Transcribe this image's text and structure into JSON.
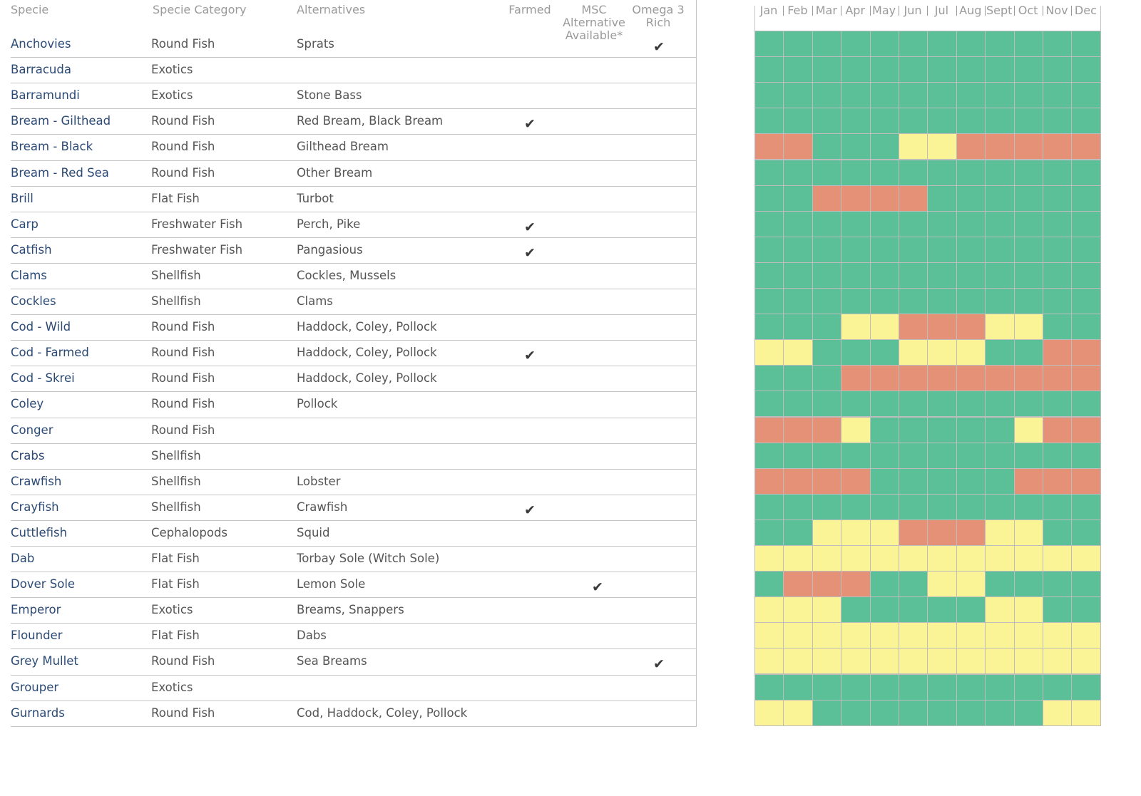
{
  "headers": {
    "species": "Specie",
    "category": "Specie Category",
    "alternatives": "Alternatives",
    "farmed": "Farmed",
    "msc": "MSC Alternative Available*",
    "omega": "Omega 3 Rich"
  },
  "months": [
    "Jan",
    "Feb",
    "Mar",
    "Apr",
    "May",
    "Jun",
    "Jul",
    "Aug",
    "Sept",
    "Oct",
    "Nov",
    "Dec"
  ],
  "check_symbol": "✔",
  "colors": {
    "G": "#5bbf97",
    "Y": "#fbf497",
    "R": "#e59178"
  },
  "rows": [
    {
      "name": "Anchovies",
      "category": "Round Fish",
      "alternatives": "Sprats",
      "farmed": false,
      "msc": false,
      "omega": true,
      "seasons": "GGGGGGGGGGGG"
    },
    {
      "name": "Barracuda",
      "category": "Exotics",
      "alternatives": "",
      "farmed": false,
      "msc": false,
      "omega": false,
      "seasons": "GGGGGGGGGGGG"
    },
    {
      "name": "Barramundi",
      "category": "Exotics",
      "alternatives": "Stone Bass",
      "farmed": false,
      "msc": false,
      "omega": false,
      "seasons": "GGGGGGGGGGGG"
    },
    {
      "name": "Bream - Gilthead",
      "category": "Round Fish",
      "alternatives": "Red Bream, Black Bream",
      "farmed": true,
      "msc": false,
      "omega": false,
      "seasons": "GGGGGGGGGGGG"
    },
    {
      "name": "Bream - Black",
      "category": "Round Fish",
      "alternatives": "Gilthead Bream",
      "farmed": false,
      "msc": false,
      "omega": false,
      "seasons": "RRGGGYYRRRRR"
    },
    {
      "name": "Bream - Red Sea",
      "category": "Round Fish",
      "alternatives": "Other Bream",
      "farmed": false,
      "msc": false,
      "omega": false,
      "seasons": "GGGGGGGGGGGG"
    },
    {
      "name": "Brill",
      "category": "Flat Fish",
      "alternatives": "Turbot",
      "farmed": false,
      "msc": false,
      "omega": false,
      "seasons": "GGRRRRGGGGGG"
    },
    {
      "name": "Carp",
      "category": "Freshwater Fish",
      "alternatives": "Perch, Pike",
      "farmed": true,
      "msc": false,
      "omega": false,
      "seasons": "GGGGGGGGGGGG"
    },
    {
      "name": "Catfish",
      "category": "Freshwater Fish",
      "alternatives": "Pangasious",
      "farmed": true,
      "msc": false,
      "omega": false,
      "seasons": "GGGGGGGGGGGG"
    },
    {
      "name": "Clams",
      "category": "Shellfish",
      "alternatives": "Cockles, Mussels",
      "farmed": false,
      "msc": false,
      "omega": false,
      "seasons": "GGGGGGGGGGGG"
    },
    {
      "name": "Cockles",
      "category": "Shellfish",
      "alternatives": "Clams",
      "farmed": false,
      "msc": false,
      "omega": false,
      "seasons": "GGGGGGGGGGGG"
    },
    {
      "name": "Cod - Wild",
      "category": "Round Fish",
      "alternatives": "Haddock, Coley, Pollock",
      "farmed": false,
      "msc": false,
      "omega": false,
      "seasons": "GGGYYRRRYYGG"
    },
    {
      "name": "Cod - Farmed",
      "category": "Round Fish",
      "alternatives": "Haddock, Coley, Pollock",
      "farmed": true,
      "msc": false,
      "omega": false,
      "seasons": "YYGGGYYYGGRR"
    },
    {
      "name": "Cod - Skrei",
      "category": "Round Fish",
      "alternatives": "Haddock, Coley, Pollock",
      "farmed": false,
      "msc": false,
      "omega": false,
      "seasons": "GGGRRRRRRRRR"
    },
    {
      "name": "Coley",
      "category": "Round Fish",
      "alternatives": "Pollock",
      "farmed": false,
      "msc": false,
      "omega": false,
      "seasons": "GGGGGGGGGGGG"
    },
    {
      "name": "Conger",
      "category": "Round Fish",
      "alternatives": "",
      "farmed": false,
      "msc": false,
      "omega": false,
      "seasons": "RRRYGGGGGYRR"
    },
    {
      "name": "Crabs",
      "category": "Shellfish",
      "alternatives": "",
      "farmed": false,
      "msc": false,
      "omega": false,
      "seasons": "GGGGGGGGGGGG"
    },
    {
      "name": "Crawfish",
      "category": "Shellfish",
      "alternatives": "Lobster",
      "farmed": false,
      "msc": false,
      "omega": false,
      "seasons": "RRRRGGGGGRRR"
    },
    {
      "name": "Crayfish",
      "category": "Shellfish",
      "alternatives": "Crawfish",
      "farmed": true,
      "msc": false,
      "omega": false,
      "seasons": "GGGGGGGGGGGG"
    },
    {
      "name": "Cuttlefish",
      "category": "Cephalopods",
      "alternatives": "Squid",
      "farmed": false,
      "msc": false,
      "omega": false,
      "seasons": "GGYYYRRRYYGG"
    },
    {
      "name": "Dab",
      "category": "Flat Fish",
      "alternatives": "Torbay Sole (Witch Sole)",
      "farmed": false,
      "msc": false,
      "omega": false,
      "seasons": "YYYYYYYYYYYY"
    },
    {
      "name": "Dover Sole",
      "category": "Flat Fish",
      "alternatives": "Lemon Sole",
      "farmed": false,
      "msc": true,
      "omega": false,
      "seasons": "GRRRGGYYGGGG"
    },
    {
      "name": "Emperor",
      "category": "Exotics",
      "alternatives": "Breams, Snappers",
      "farmed": false,
      "msc": false,
      "omega": false,
      "seasons": "YYYGGGGGYYGG"
    },
    {
      "name": "Flounder",
      "category": "Flat Fish",
      "alternatives": "Dabs",
      "farmed": false,
      "msc": false,
      "omega": false,
      "seasons": "YYYYYYYYYYYY"
    },
    {
      "name": "Grey Mullet",
      "category": "Round Fish",
      "alternatives": "Sea Breams",
      "farmed": false,
      "msc": false,
      "omega": true,
      "seasons": "YYYYYYYYYYYY"
    },
    {
      "name": "Grouper",
      "category": "Exotics",
      "alternatives": "",
      "farmed": false,
      "msc": false,
      "omega": false,
      "seasons": "GGGGGGGGGGGG"
    },
    {
      "name": "Gurnards",
      "category": "Round Fish",
      "alternatives": "Cod, Haddock, Coley, Pollock",
      "farmed": false,
      "msc": false,
      "omega": false,
      "seasons": "YYGGGGGGGGYY"
    }
  ]
}
